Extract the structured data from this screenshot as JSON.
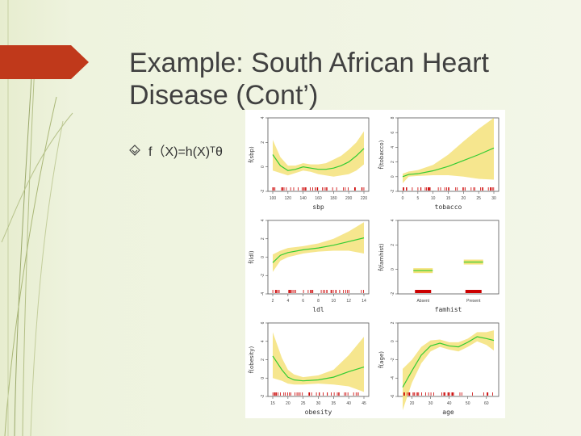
{
  "slide": {
    "title_line1": "Example: South African Heart",
    "title_line2": "Disease (Cont’)",
    "bullet_text": "f（X)=h(X)ᵀθ"
  },
  "colors": {
    "background": "#eef2dc",
    "accent_tab": "#c0391b",
    "curve": "#33cc33",
    "band": "#f5e27a",
    "rug": "#cc0000"
  },
  "chart_data": [
    {
      "type": "line",
      "ylabel": "f̂(sbp)",
      "xlabel": "sbp",
      "xticks": [
        "100",
        "120",
        "140",
        "160",
        "180",
        "200",
        "220"
      ],
      "x": [
        100,
        110,
        120,
        130,
        140,
        150,
        160,
        170,
        180,
        190,
        200,
        210,
        220
      ],
      "y": [
        1.0,
        0.1,
        -0.3,
        -0.2,
        0.0,
        -0.1,
        -0.2,
        -0.2,
        -0.1,
        0.1,
        0.4,
        0.9,
        1.5
      ],
      "band_upper": [
        2.2,
        0.8,
        0.1,
        0.1,
        0.3,
        0.2,
        0.2,
        0.3,
        0.6,
        0.9,
        1.4,
        2.0,
        2.9
      ],
      "band_lower": [
        -0.3,
        -0.5,
        -0.7,
        -0.5,
        -0.3,
        -0.4,
        -0.6,
        -0.7,
        -0.8,
        -0.7,
        -0.6,
        -0.3,
        0.2
      ],
      "ylim": [
        -2,
        4
      ],
      "yticks": [
        "-2",
        "0",
        "2",
        "4"
      ]
    },
    {
      "type": "line",
      "ylabel": "f̂(tobacco)",
      "xlabel": "tobacco",
      "xticks": [
        "0",
        "5",
        "10",
        "15",
        "20",
        "25",
        "30"
      ],
      "x": [
        0,
        2,
        5,
        10,
        15,
        20,
        25,
        30
      ],
      "y": [
        0.0,
        0.3,
        0.4,
        0.8,
        1.4,
        2.2,
        3.0,
        3.9
      ],
      "band_upper": [
        0.4,
        0.7,
        0.9,
        1.6,
        3.0,
        4.8,
        6.5,
        8.0
      ],
      "band_lower": [
        -0.9,
        0.0,
        0.1,
        0.2,
        0.2,
        0.0,
        -0.3,
        -0.4
      ],
      "ylim": [
        -2,
        8
      ],
      "yticks": [
        "-2",
        "0",
        "2",
        "4",
        "6",
        "8"
      ]
    },
    {
      "type": "line",
      "ylabel": "f̂(ldl)",
      "xlabel": "ldl",
      "xticks": [
        "2",
        "4",
        "6",
        "8",
        "10",
        "12",
        "14"
      ],
      "x": [
        2,
        3,
        4,
        6,
        8,
        10,
        12,
        14
      ],
      "y": [
        -0.6,
        0.2,
        0.5,
        0.8,
        1.0,
        1.3,
        1.7,
        2.1
      ],
      "band_upper": [
        0.3,
        0.7,
        1.0,
        1.2,
        1.5,
        2.0,
        2.8,
        3.8
      ],
      "band_lower": [
        -1.6,
        -0.4,
        0.0,
        0.4,
        0.6,
        0.7,
        0.7,
        0.4
      ],
      "ylim": [
        -4,
        4
      ],
      "yticks": [
        "-4",
        "-2",
        "0",
        "2",
        "4"
      ]
    },
    {
      "type": "bar",
      "ylabel": "f̂(famhist)",
      "xlabel": "famhist",
      "categories": [
        "Absent",
        "Present"
      ],
      "values": [
        -0.1,
        0.6
      ],
      "ylim": [
        -2,
        4
      ],
      "yticks": [
        "-2",
        "0",
        "2",
        "4"
      ]
    },
    {
      "type": "line",
      "ylabel": "f̂(obesity)",
      "xlabel": "obesity",
      "xticks": [
        "15",
        "20",
        "25",
        "30",
        "35",
        "40",
        "45"
      ],
      "x": [
        15,
        18,
        20,
        22,
        25,
        30,
        35,
        40,
        45
      ],
      "y": [
        2.4,
        0.9,
        0.1,
        -0.2,
        -0.3,
        -0.2,
        0.1,
        0.7,
        1.2
      ],
      "band_upper": [
        5.0,
        2.2,
        0.9,
        0.4,
        0.1,
        0.3,
        0.9,
        2.5,
        4.5
      ],
      "band_lower": [
        0.0,
        -0.3,
        -0.6,
        -0.7,
        -0.7,
        -0.6,
        -0.7,
        -0.9,
        -1.5
      ],
      "ylim": [
        -2,
        6
      ],
      "yticks": [
        "-2",
        "0",
        "2",
        "4",
        "6"
      ]
    },
    {
      "type": "line",
      "ylabel": "f̂(age)",
      "xlabel": "age",
      "xticks": [
        "20",
        "30",
        "40",
        "50",
        "60"
      ],
      "x": [
        15,
        20,
        25,
        30,
        35,
        40,
        45,
        50,
        55,
        60,
        64
      ],
      "y": [
        -5.0,
        -3.2,
        -1.5,
        -0.5,
        -0.2,
        -0.5,
        -0.6,
        -0.1,
        0.5,
        0.3,
        0.1
      ],
      "band_upper": [
        -3.0,
        -2.0,
        -0.6,
        0.1,
        0.2,
        -0.1,
        -0.1,
        0.3,
        1.0,
        1.0,
        1.2
      ],
      "band_lower": [
        -7.5,
        -4.5,
        -2.4,
        -1.1,
        -0.6,
        -0.9,
        -1.1,
        -0.6,
        0.0,
        -0.4,
        -1.0
      ],
      "ylim": [
        -6,
        2
      ],
      "yticks": [
        "-6",
        "-4",
        "-2",
        "0",
        "2"
      ]
    }
  ]
}
